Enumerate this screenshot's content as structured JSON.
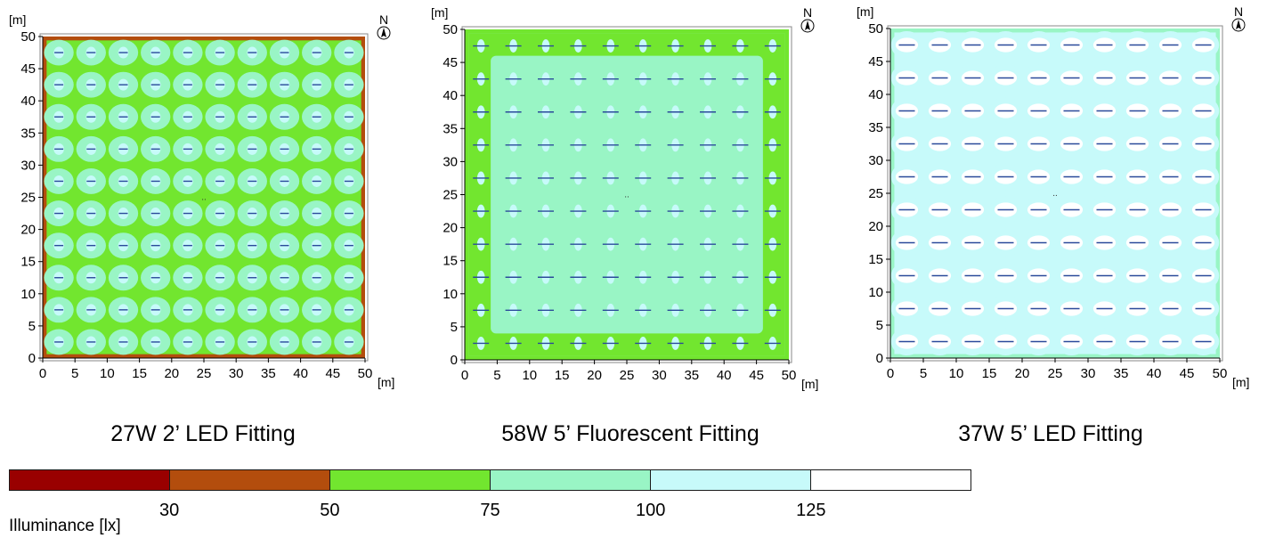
{
  "chart_data": [
    {
      "type": "heatmap",
      "title": "27W 2’ LED Fitting",
      "xlabel": "[m]",
      "ylabel": "[m]",
      "xlim": [
        0,
        50
      ],
      "ylim": [
        0,
        50
      ],
      "ticks": [
        "0",
        "5",
        "10",
        "15",
        "20",
        "25",
        "30",
        "35",
        "40",
        "45",
        "50"
      ],
      "north_label": "N",
      "luminaire_grid": {
        "columns": 10,
        "rows": 10,
        "spacing_m": 5
      },
      "base_class": "50-75",
      "edge_class": "30-50",
      "pool_class": "75-100",
      "center_class": "100-125"
    },
    {
      "type": "heatmap",
      "title": "58W 5’ Fluorescent Fitting",
      "xlabel": "[m]",
      "ylabel": "[m]",
      "xlim": [
        0,
        50
      ],
      "ylim": [
        0,
        50
      ],
      "ticks": [
        "0",
        "5",
        "10",
        "15",
        "20",
        "25",
        "30",
        "35",
        "40",
        "45",
        "50"
      ],
      "north_label": "N",
      "luminaire_grid": {
        "columns": 10,
        "rows": 10,
        "spacing_m": 5
      },
      "base_class": "75-100",
      "edge_class": "50-75",
      "pool_class": "75-100",
      "center_class": "100-125"
    },
    {
      "type": "heatmap",
      "title": "37W 5’ LED Fitting",
      "xlabel": "[m]",
      "ylabel": "[m]",
      "xlim": [
        0,
        50
      ],
      "ylim": [
        0,
        50
      ],
      "ticks": [
        "0",
        "5",
        "10",
        "15",
        "20",
        "25",
        "30",
        "35",
        "40",
        "45",
        "50"
      ],
      "north_label": "N",
      "luminaire_grid": {
        "columns": 10,
        "rows": 10,
        "spacing_m": 5
      },
      "base_class": "100-125",
      "edge_class": "75-100",
      "pool_class": "100-125",
      "center_class": ">125"
    }
  ],
  "legend": {
    "title": "Illuminance [lx]",
    "classes": [
      {
        "range": "<30",
        "color": "#990000"
      },
      {
        "range": "30-50",
        "color": "#b34d0d"
      },
      {
        "range": "50-75",
        "color": "#72e62f"
      },
      {
        "range": "75-100",
        "color": "#99f5c5"
      },
      {
        "range": "100-125",
        "color": "#c7fafa"
      },
      {
        "range": ">125",
        "color": "#ffffff"
      }
    ],
    "ticks": [
      "30",
      "50",
      "75",
      "100",
      "125"
    ]
  }
}
